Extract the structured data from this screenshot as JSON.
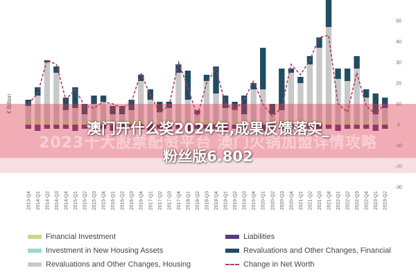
{
  "chart_data": {
    "type": "bar",
    "ylabel": "€ Billion",
    "ylim": [
      -30,
      50
    ],
    "yticks": [
      50,
      40,
      30,
      20,
      10,
      0,
      -10,
      -20,
      -30
    ],
    "grid": false,
    "categories": [
      "2013-Q4",
      "2014-Q1",
      "2014-Q2",
      "2014-Q3",
      "2014-Q4",
      "2015-Q1",
      "2015-Q2",
      "2015-Q3",
      "2015-Q4",
      "2016-Q1",
      "2016-Q2",
      "2016-Q3",
      "2016-Q4",
      "2017-Q1",
      "2017-Q2",
      "2017-Q3",
      "2017-Q4",
      "2018-Q1",
      "2018-Q2",
      "2018-Q3",
      "2018-Q4",
      "2019-Q1",
      "2019-Q2",
      "2019-Q3",
      "2019-Q4",
      "2020-Q1",
      "2020-Q2",
      "2020-Q3",
      "2020-Q4",
      "2021-Q1",
      "2021-Q2",
      "2021-Q3",
      "2021-Q4",
      "2022-Q1",
      "2022-Q2",
      "2022-Q3",
      "2022-Q4",
      "2023-Q1",
      "2023-Q2"
    ],
    "series": [
      {
        "name": "Financial Investment",
        "color": "#c5d98a",
        "values": [
          2,
          3,
          3,
          2,
          2,
          2,
          2,
          2,
          2,
          1,
          2,
          2,
          2,
          1,
          2,
          2,
          2,
          1,
          2,
          2,
          2,
          1,
          2,
          2,
          2,
          1,
          2,
          2,
          2,
          1,
          2,
          2,
          2,
          1,
          2,
          2,
          2,
          1,
          2
        ]
      },
      {
        "name": "Investment in New Housing Assets",
        "color": "#9fd6d0",
        "values": [
          1,
          1,
          1,
          1,
          1,
          1,
          1,
          1,
          1,
          1,
          1,
          1,
          1,
          1,
          1,
          1,
          1,
          1,
          1,
          1,
          1,
          1,
          1,
          1,
          1,
          1,
          1,
          1,
          1,
          1,
          1,
          1,
          1,
          1,
          1,
          1,
          1,
          1,
          1
        ]
      },
      {
        "name": "Revaluations and Other Changes, Housing",
        "color": "#c8c8c8",
        "values": [
          6,
          10,
          26,
          22,
          4,
          5,
          2,
          7,
          8,
          3,
          2,
          4,
          18,
          10,
          3,
          5,
          22,
          10,
          2,
          18,
          12,
          6,
          4,
          2,
          14,
          15,
          2,
          4,
          22,
          18,
          26,
          34,
          44,
          20,
          18,
          24,
          10,
          3,
          5
        ]
      },
      {
        "name": "Liabilities",
        "color": "#5b3a7a",
        "values": [
          -2,
          -3,
          -2,
          -2,
          -2,
          -3,
          -2,
          -2,
          -2,
          -3,
          -2,
          -2,
          -2,
          -3,
          -2,
          -2,
          -2,
          -3,
          -2,
          -2,
          -2,
          -3,
          -2,
          -2,
          -2,
          -3,
          -2,
          -2,
          -2,
          -3,
          -2,
          -2,
          -2,
          -3,
          -2,
          -2,
          -2,
          -3,
          -2
        ]
      },
      {
        "name": "Revaluations and Other Changes, Financial",
        "color": "#1f4e63",
        "values": [
          3,
          4,
          1,
          3,
          6,
          10,
          5,
          4,
          3,
          4,
          4,
          5,
          3,
          5,
          5,
          3,
          4,
          14,
          2,
          3,
          13,
          6,
          4,
          9,
          3,
          20,
          5,
          20,
          2,
          3,
          4,
          5,
          16,
          5,
          6,
          6,
          4,
          10,
          5
        ]
      }
    ],
    "line": {
      "name": "Change in Net Worth",
      "color": "#b03a6a",
      "values": [
        10,
        15,
        31,
        29,
        12,
        17,
        9,
        8,
        11,
        10,
        8,
        11,
        25,
        14,
        6,
        9,
        30,
        18,
        4,
        20,
        27,
        10,
        7,
        12,
        21,
        10,
        4,
        8,
        29,
        24,
        31,
        42,
        43,
        10,
        6,
        25,
        9,
        5,
        10
      ]
    },
    "legend_position": "bottom"
  },
  "overlay": {
    "line1": "澳门开什么奖2024年,成果反馈落实_",
    "line2": "粉丝版6.802",
    "watermark": "2023十大股票配资平台 澳门火锅加盟详情攻略"
  }
}
